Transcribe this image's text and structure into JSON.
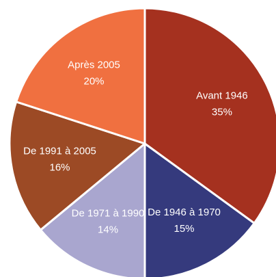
{
  "chart_data": {
    "type": "pie",
    "categories": [
      "Avant 1946",
      "De 1946 à 1970",
      "De 1971 à 1990",
      "De 1991 à 2005",
      "Après 2005"
    ],
    "values": [
      35,
      15,
      14,
      16,
      20
    ],
    "value_labels": [
      "35%",
      "15%",
      "14%",
      "16%",
      "20%"
    ],
    "colors": [
      "#a5311f",
      "#353a7d",
      "#a9a6cf",
      "#9c4a25",
      "#f07040"
    ]
  }
}
